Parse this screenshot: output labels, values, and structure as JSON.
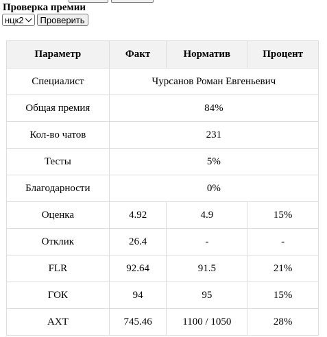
{
  "title": "Проверка премии",
  "controls": {
    "select_value": "нцк2",
    "check_button": "Проверить"
  },
  "table": {
    "headers": [
      "Параметр",
      "Факт",
      "Норматив",
      "Процент"
    ],
    "summary_rows": [
      {
        "param": "Специалист",
        "value": "Чурсанов Роман Евгеньевич"
      },
      {
        "param": "Общая премия",
        "value": "84%"
      },
      {
        "param": "Кол-во чатов",
        "value": "231"
      },
      {
        "param": "Тесты",
        "value": "5%"
      },
      {
        "param": "Благодарности",
        "value": "0%"
      }
    ],
    "metric_rows": [
      {
        "param": "Оценка",
        "fact": "4.92",
        "norm": "4.9",
        "percent": "15%"
      },
      {
        "param": "Отклик",
        "fact": "26.4",
        "norm": "-",
        "percent": "-"
      },
      {
        "param": "FLR",
        "fact": "92.64",
        "norm": "91.5",
        "percent": "21%"
      },
      {
        "param": "ГОК",
        "fact": "94",
        "norm": "95",
        "percent": "15%"
      },
      {
        "param": "AXT",
        "fact": "745.46",
        "norm": "1100 / 1050",
        "percent": "28%"
      }
    ]
  }
}
